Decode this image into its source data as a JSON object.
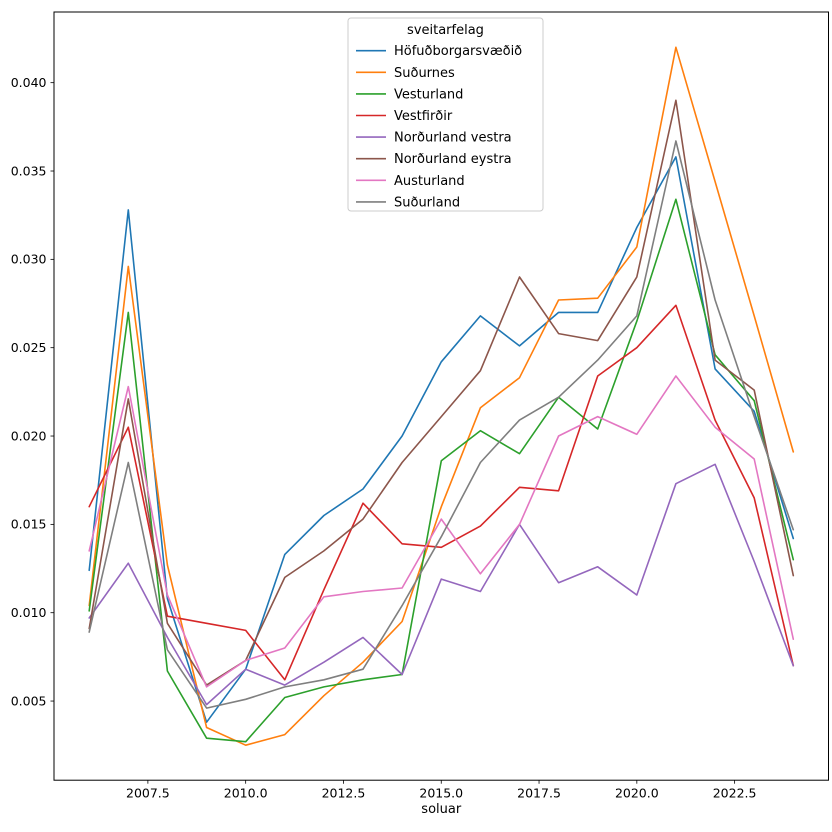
{
  "figure": {
    "xlabel": "soluar",
    "legend_title": "sveitarfelag"
  },
  "chart_data": {
    "type": "line",
    "title": "",
    "xlabel": "soluar",
    "ylabel": "",
    "grid": false,
    "legend_title": "sveitarfelag",
    "legend_position": "upper center",
    "xlim": [
      2005.1,
      2024.9
    ],
    "ylim": [
      0.00052,
      0.044
    ],
    "x_ticks": [
      2007.5,
      2010.0,
      2012.5,
      2015.0,
      2017.5,
      2020.0,
      2022.5
    ],
    "x_tick_labels": [
      "2007.5",
      "2010.0",
      "2012.5",
      "2015.0",
      "2017.5",
      "2020.0",
      "2022.5"
    ],
    "y_ticks": [
      0.005,
      0.01,
      0.015,
      0.02,
      0.025,
      0.03,
      0.035,
      0.04
    ],
    "y_tick_labels": [
      "0.005",
      "0.010",
      "0.015",
      "0.020",
      "0.025",
      "0.030",
      "0.035",
      "0.040"
    ],
    "x": [
      2006,
      2007,
      2008,
      2009,
      2010,
      2011,
      2012,
      2013,
      2014,
      2015,
      2016,
      2017,
      2018,
      2019,
      2020,
      2021,
      2022,
      2023,
      2024
    ],
    "series": [
      {
        "name": "Höfuðborgarsvæðið",
        "color": "#1f77b4",
        "values": [
          0.0124,
          0.0328,
          0.0108,
          0.0038,
          0.0068,
          0.0133,
          0.0155,
          0.017,
          0.02,
          0.0242,
          0.0268,
          0.0251,
          0.027,
          0.027,
          0.0318,
          0.0358,
          0.0238,
          0.0214,
          0.0142
        ]
      },
      {
        "name": "Suðurnes",
        "color": "#ff7f0e",
        "values": [
          0.0104,
          0.0296,
          0.0127,
          0.0035,
          0.0025,
          0.0031,
          0.0053,
          0.0072,
          0.0095,
          0.016,
          0.0216,
          0.0233,
          0.0277,
          0.0278,
          0.0307,
          0.042,
          0.0344,
          0.0268,
          0.0191
        ]
      },
      {
        "name": "Vesturland",
        "color": "#2ca02c",
        "values": [
          0.0101,
          0.027,
          0.0067,
          0.0029,
          0.0027,
          0.0052,
          0.0058,
          0.0062,
          0.0065,
          0.0186,
          0.0203,
          0.019,
          0.0222,
          0.0204,
          0.0265,
          0.0334,
          0.0246,
          0.022,
          0.013
        ]
      },
      {
        "name": "Vestfirðir",
        "color": "#d62728",
        "values": [
          0.016,
          0.0205,
          0.0098,
          0.0094,
          0.009,
          0.0062,
          0.0113,
          0.0162,
          0.0139,
          0.0137,
          0.0149,
          0.0171,
          0.0169,
          0.0234,
          0.025,
          0.0274,
          0.0209,
          0.0165,
          0.007
        ]
      },
      {
        "name": "Norðurland vestra",
        "color": "#9467bd",
        "values": [
          0.0097,
          0.0128,
          0.0086,
          0.0048,
          0.0068,
          0.0059,
          0.0072,
          0.0086,
          0.0065,
          0.0119,
          0.0112,
          0.015,
          0.0117,
          0.0126,
          0.011,
          0.0173,
          0.0184,
          0.0129,
          0.007
        ]
      },
      {
        "name": "Norðurland eystra",
        "color": "#8c564b",
        "values": [
          0.0091,
          0.0221,
          0.0094,
          0.0059,
          0.0073,
          0.012,
          0.0135,
          0.0153,
          0.0185,
          0.0211,
          0.0237,
          0.029,
          0.0258,
          0.0254,
          0.029,
          0.039,
          0.0243,
          0.0226,
          0.0121
        ]
      },
      {
        "name": "Austurland",
        "color": "#e377c2",
        "values": [
          0.0135,
          0.0228,
          0.011,
          0.0058,
          0.0073,
          0.008,
          0.0109,
          0.0112,
          0.0114,
          0.0153,
          0.0122,
          0.015,
          0.02,
          0.0211,
          0.0201,
          0.0234,
          0.0205,
          0.0187,
          0.0085
        ]
      },
      {
        "name": "Suðurland",
        "color": "#7f7f7f",
        "values": [
          0.0089,
          0.0185,
          0.0079,
          0.0046,
          0.0051,
          0.0058,
          0.0062,
          0.0068,
          0.0104,
          0.0143,
          0.0185,
          0.0209,
          0.0222,
          0.0243,
          0.0268,
          0.0367,
          0.0277,
          0.0211,
          0.0147
        ]
      }
    ]
  }
}
